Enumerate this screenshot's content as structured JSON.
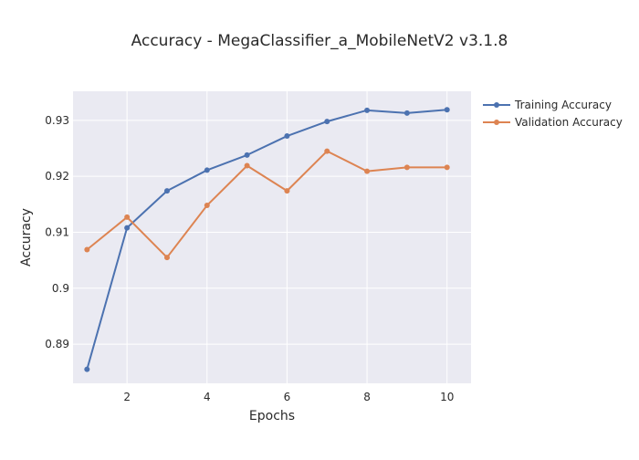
{
  "chart_data": {
    "type": "line",
    "title": "Accuracy - MegaClassifier_a_MobileNetV2 v3.1.8",
    "xlabel": "Epochs",
    "ylabel": "Accuracy",
    "xlim": [
      0.65,
      10.6
    ],
    "ylim": [
      0.883,
      0.9352
    ],
    "x_ticks": [
      2,
      4,
      6,
      8,
      10
    ],
    "y_ticks": [
      0.89,
      0.9,
      0.91,
      0.92,
      0.93
    ],
    "y_tick_labels": [
      "0.89",
      "0.9",
      "0.91",
      "0.92",
      "0.93"
    ],
    "grid": true,
    "legend_position": "top-right outside",
    "x": [
      1,
      2,
      3,
      4,
      5,
      6,
      7,
      8,
      9,
      10
    ],
    "series": [
      {
        "name": "Training Accuracy",
        "color": "#4c72b0",
        "values": [
          0.8855,
          0.9108,
          0.9174,
          0.9211,
          0.9238,
          0.9272,
          0.9298,
          0.9318,
          0.9313,
          0.9319
        ]
      },
      {
        "name": "Validation Accuracy",
        "color": "#dd8452",
        "values": [
          0.9069,
          0.9127,
          0.9055,
          0.9148,
          0.9219,
          0.9174,
          0.9245,
          0.9209,
          0.9216,
          0.9216
        ]
      }
    ],
    "colors": {
      "plot_background": "#eaeaf2",
      "grid": "#ffffff",
      "text": "#2a2a2a"
    }
  }
}
